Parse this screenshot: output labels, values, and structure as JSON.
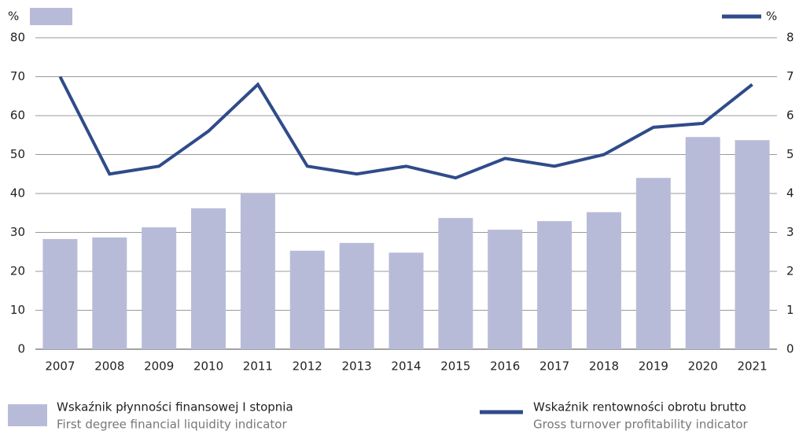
{
  "chart_data": {
    "type": "bar_line",
    "ylabel": "%",
    "y2label": "%",
    "categories": [
      "2007",
      "2008",
      "2009",
      "2010",
      "2011",
      "2012",
      "2013",
      "2014",
      "2015",
      "2016",
      "2017",
      "2018",
      "2019",
      "2020",
      "2021"
    ],
    "series": [
      {
        "name": "Wskaźnik płynności finansowej I stopnia",
        "name_en": "First degree financial liquidity indicator",
        "type": "bar",
        "color": "#b8bbd8",
        "values": [
          28.3,
          28.7,
          31.3,
          36.2,
          40.0,
          25.3,
          27.3,
          24.8,
          33.7,
          30.7,
          32.9,
          35.2,
          44.0,
          54.5,
          53.7
        ]
      },
      {
        "name": "Wskaźnik rentowności obrotu brutto",
        "name_en": "Gross turnover profitability indicator",
        "type": "line",
        "axis": "y2",
        "color": "#2f4b8a",
        "values": [
          7.0,
          4.5,
          4.7,
          5.6,
          6.8,
          4.7,
          4.5,
          4.7,
          4.4,
          4.9,
          4.7,
          5.0,
          5.7,
          5.8,
          6.8
        ]
      }
    ],
    "ylim": [
      0,
      80
    ],
    "yticks": [
      0,
      10,
      20,
      30,
      40,
      50,
      60,
      70,
      80
    ],
    "y2lim": [
      0,
      8
    ],
    "y2ticks": [
      0,
      1,
      2,
      3,
      4,
      5,
      6,
      7,
      8
    ],
    "grid": true
  }
}
